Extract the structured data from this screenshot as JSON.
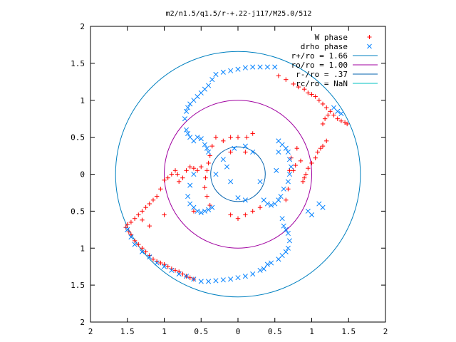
{
  "chart_data": {
    "type": "scatter",
    "title": "m2/n1.5/q1.5/r-+.22-j117/M25.0/512",
    "xlabel": "",
    "ylabel": "",
    "xlim": [
      -2,
      2
    ],
    "ylim": [
      -2,
      2
    ],
    "x_tick_labels": [
      "2",
      "1.5",
      "1",
      "0.5",
      "0",
      "0.5",
      "1",
      "1.5",
      "2"
    ],
    "y_tick_labels": [
      "2",
      "1.5",
      "1",
      "0.5",
      "0",
      "0.5",
      "1",
      "1.5",
      "2"
    ],
    "x_tick_values": [
      -2,
      -1.5,
      -1,
      -0.5,
      0,
      0.5,
      1,
      1.5,
      2
    ],
    "y_tick_values": [
      2,
      1.5,
      1,
      0.5,
      0,
      -0.5,
      -1,
      -1.5,
      -2
    ],
    "grid": false,
    "legend_position": "top-right",
    "legend": [
      {
        "label": "W phase",
        "marker": "+",
        "color": "#ff0000"
      },
      {
        "label": "drho phase",
        "marker": "x",
        "color": "#0080ff"
      },
      {
        "label": "r+/ro = 1.66",
        "marker": "line",
        "color": "#0080c0"
      },
      {
        "label": "ro/ro = 1.00",
        "marker": "line",
        "color": "#a000a0"
      },
      {
        "label": "r-/ro = .37",
        "marker": "line",
        "color": "#0060ad"
      },
      {
        "label": "rc/ro = NaN",
        "marker": "line",
        "color": "#00c0c0"
      }
    ],
    "circles": [
      {
        "name": "r+/ro = 1.66",
        "radius": 1.66,
        "color": "#0080c0"
      },
      {
        "name": "ro/ro = 1.00",
        "radius": 1.0,
        "color": "#a000a0"
      },
      {
        "name": "r-/ro = .37",
        "radius": 0.37,
        "color": "#0060ad"
      }
    ],
    "series": [
      {
        "name": "W phase",
        "marker": "+",
        "color": "#ff0000",
        "points": [
          [
            0.55,
            1.33
          ],
          [
            0.65,
            1.28
          ],
          [
            0.75,
            1.22
          ],
          [
            0.82,
            1.18
          ],
          [
            0.9,
            1.15
          ],
          [
            0.95,
            1.1
          ],
          [
            1.0,
            1.08
          ],
          [
            1.05,
            1.05
          ],
          [
            1.1,
            1.0
          ],
          [
            1.15,
            0.95
          ],
          [
            1.2,
            0.9
          ],
          [
            1.25,
            0.85
          ],
          [
            1.3,
            0.8
          ],
          [
            1.35,
            0.75
          ],
          [
            1.4,
            0.72
          ],
          [
            1.45,
            0.7
          ],
          [
            1.48,
            0.68
          ],
          [
            1.22,
            0.8
          ],
          [
            1.18,
            0.75
          ],
          [
            1.15,
            0.68
          ],
          [
            1.2,
            0.45
          ],
          [
            1.15,
            0.38
          ],
          [
            1.12,
            0.35
          ],
          [
            1.08,
            0.3
          ],
          [
            1.05,
            0.22
          ],
          [
            1.0,
            0.15
          ],
          [
            0.95,
            0.08
          ],
          [
            0.92,
            0.0
          ],
          [
            0.9,
            -0.05
          ],
          [
            0.88,
            -0.1
          ],
          [
            0.85,
            0.18
          ],
          [
            0.8,
            0.35
          ],
          [
            0.78,
            0.12
          ],
          [
            0.75,
            0.05
          ],
          [
            0.72,
            0.22
          ],
          [
            0.7,
            0.05
          ],
          [
            0.68,
            -0.2
          ],
          [
            0.65,
            -0.35
          ],
          [
            -0.2,
            0.45
          ],
          [
            -0.3,
            0.5
          ],
          [
            -0.35,
            0.38
          ],
          [
            -0.38,
            0.25
          ],
          [
            -0.4,
            0.15
          ],
          [
            -0.42,
            0.05
          ],
          [
            -0.44,
            -0.05
          ],
          [
            -0.45,
            -0.18
          ],
          [
            -0.42,
            -0.3
          ],
          [
            -0.38,
            -0.42
          ],
          [
            -0.5,
            0.1
          ],
          [
            -0.55,
            0.05
          ],
          [
            -0.6,
            0.08
          ],
          [
            -0.65,
            0.1
          ],
          [
            -0.7,
            0.05
          ],
          [
            -0.75,
            -0.05
          ],
          [
            -0.8,
            -0.1
          ],
          [
            -0.82,
            0.0
          ],
          [
            -0.85,
            0.05
          ],
          [
            -0.9,
            0.0
          ],
          [
            -0.95,
            -0.05
          ],
          [
            -1.0,
            -0.08
          ],
          [
            -1.05,
            -0.2
          ],
          [
            -1.1,
            -0.3
          ],
          [
            -1.15,
            -0.35
          ],
          [
            -1.2,
            -0.4
          ],
          [
            -1.25,
            -0.45
          ],
          [
            -1.3,
            -0.5
          ],
          [
            -1.35,
            -0.55
          ],
          [
            -1.45,
            -0.65
          ],
          [
            -1.5,
            -0.68
          ],
          [
            -1.52,
            -0.72
          ],
          [
            -1.48,
            -0.78
          ],
          [
            -1.45,
            -0.82
          ],
          [
            -1.4,
            -0.9
          ],
          [
            -1.35,
            -0.95
          ],
          [
            -1.3,
            -1.0
          ],
          [
            -1.25,
            -1.05
          ],
          [
            -1.2,
            -1.1
          ],
          [
            -1.15,
            -1.15
          ],
          [
            -1.1,
            -1.18
          ],
          [
            -1.05,
            -1.2
          ],
          [
            -1.0,
            -1.22
          ],
          [
            -0.95,
            -1.25
          ],
          [
            -0.9,
            -1.28
          ],
          [
            -0.85,
            -1.3
          ],
          [
            -0.8,
            -1.32
          ],
          [
            -0.75,
            -1.35
          ],
          [
            -0.7,
            -1.38
          ],
          [
            -0.65,
            -1.4
          ],
          [
            -0.6,
            -1.42
          ],
          [
            -1.4,
            -0.6
          ],
          [
            -1.3,
            -0.62
          ],
          [
            -1.2,
            -0.7
          ],
          [
            -1.0,
            -0.55
          ],
          [
            -0.6,
            -0.5
          ],
          [
            0.12,
            0.5
          ],
          [
            0.2,
            0.55
          ],
          [
            0.1,
            0.3
          ],
          [
            -0.1,
            0.5
          ],
          [
            -0.1,
            0.3
          ],
          [
            0.0,
            0.5
          ],
          [
            0.2,
            -0.5
          ],
          [
            0.1,
            -0.55
          ],
          [
            0.0,
            -0.6
          ],
          [
            -0.1,
            -0.55
          ],
          [
            0.3,
            -0.45
          ]
        ]
      },
      {
        "name": "drho phase",
        "marker": "x",
        "color": "#0080ff",
        "points": [
          [
            -0.1,
            1.4
          ],
          [
            0.0,
            1.42
          ],
          [
            0.1,
            1.44
          ],
          [
            0.2,
            1.45
          ],
          [
            0.3,
            1.45
          ],
          [
            0.4,
            1.45
          ],
          [
            0.5,
            1.45
          ],
          [
            -0.2,
            1.38
          ],
          [
            -0.3,
            1.35
          ],
          [
            -0.35,
            1.28
          ],
          [
            -0.4,
            1.2
          ],
          [
            -0.45,
            1.15
          ],
          [
            -0.5,
            1.1
          ],
          [
            -0.55,
            1.05
          ],
          [
            -0.6,
            1.0
          ],
          [
            -0.65,
            0.95
          ],
          [
            -0.68,
            0.9
          ],
          [
            -0.7,
            0.85
          ],
          [
            -0.72,
            0.75
          ],
          [
            -0.7,
            0.6
          ],
          [
            -0.68,
            0.55
          ],
          [
            -0.65,
            0.5
          ],
          [
            -0.6,
            0.45
          ],
          [
            -0.55,
            0.5
          ],
          [
            -0.5,
            0.48
          ],
          [
            -0.45,
            0.4
          ],
          [
            -0.42,
            0.35
          ],
          [
            -0.4,
            0.3
          ],
          [
            -0.6,
            0.0
          ],
          [
            -0.65,
            -0.15
          ],
          [
            -0.68,
            -0.3
          ],
          [
            -0.65,
            -0.4
          ],
          [
            -0.6,
            -0.45
          ],
          [
            -0.55,
            -0.5
          ],
          [
            -0.5,
            -0.52
          ],
          [
            -0.45,
            -0.5
          ],
          [
            -0.4,
            -0.48
          ],
          [
            -0.35,
            -0.45
          ],
          [
            0.55,
            0.45
          ],
          [
            0.6,
            0.4
          ],
          [
            0.65,
            0.35
          ],
          [
            0.68,
            0.3
          ],
          [
            0.7,
            0.2
          ],
          [
            0.72,
            0.1
          ],
          [
            0.7,
            0.0
          ],
          [
            0.68,
            -0.1
          ],
          [
            0.62,
            -0.2
          ],
          [
            0.58,
            -0.3
          ],
          [
            0.55,
            -0.35
          ],
          [
            0.5,
            -0.4
          ],
          [
            0.45,
            -0.42
          ],
          [
            0.4,
            -0.4
          ],
          [
            0.35,
            -0.35
          ],
          [
            0.6,
            -0.6
          ],
          [
            0.62,
            -0.7
          ],
          [
            0.65,
            -0.75
          ],
          [
            0.68,
            -0.8
          ],
          [
            0.7,
            -0.9
          ],
          [
            0.68,
            -1.0
          ],
          [
            0.65,
            -1.05
          ],
          [
            0.6,
            -1.1
          ],
          [
            0.55,
            -1.15
          ],
          [
            0.45,
            -1.2
          ],
          [
            0.4,
            -1.22
          ],
          [
            0.35,
            -1.28
          ],
          [
            0.3,
            -1.3
          ],
          [
            0.2,
            -1.35
          ],
          [
            0.1,
            -1.38
          ],
          [
            0.0,
            -1.4
          ],
          [
            -0.1,
            -1.42
          ],
          [
            -0.2,
            -1.43
          ],
          [
            -0.3,
            -1.44
          ],
          [
            -0.4,
            -1.45
          ],
          [
            -0.5,
            -1.45
          ],
          [
            -0.6,
            -1.42
          ],
          [
            -0.7,
            -1.38
          ],
          [
            -0.8,
            -1.35
          ],
          [
            -0.9,
            -1.3
          ],
          [
            -1.0,
            -1.25
          ],
          [
            -1.1,
            -1.2
          ],
          [
            -1.2,
            -1.12
          ],
          [
            -1.3,
            -1.05
          ],
          [
            -1.4,
            -0.95
          ],
          [
            -1.45,
            -0.85
          ],
          [
            -1.5,
            -0.75
          ],
          [
            1.0,
            -0.55
          ],
          [
            0.95,
            -0.5
          ],
          [
            1.15,
            -0.45
          ],
          [
            1.1,
            -0.4
          ],
          [
            1.3,
            0.9
          ],
          [
            1.35,
            0.85
          ],
          [
            1.4,
            0.82
          ],
          [
            0.55,
            0.3
          ],
          [
            0.52,
            0.05
          ],
          [
            0.1,
            0.38
          ],
          [
            -0.05,
            0.35
          ],
          [
            0.2,
            0.3
          ],
          [
            -0.2,
            0.2
          ],
          [
            -0.15,
            0.1
          ],
          [
            -0.1,
            -0.1
          ],
          [
            0.0,
            -0.32
          ],
          [
            0.1,
            -0.35
          ],
          [
            -0.3,
            0.0
          ],
          [
            0.3,
            -0.1
          ]
        ]
      }
    ]
  }
}
